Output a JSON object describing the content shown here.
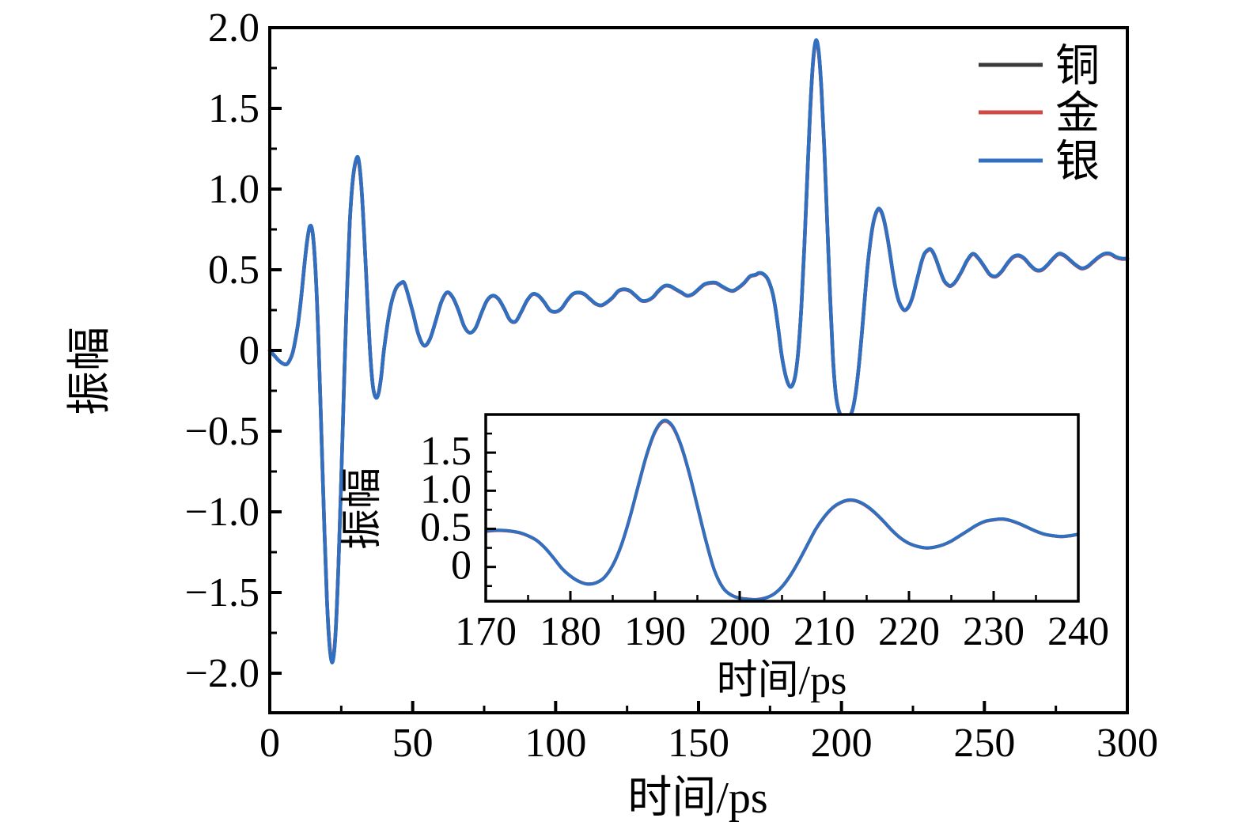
{
  "figure": {
    "background": "#ffffff",
    "axis_color": "#000000"
  },
  "chart_data": {
    "type": "line",
    "title": "",
    "series": [
      {
        "name": "铜",
        "color": "#3a3a3c",
        "amplitude_scale": 0.997
      },
      {
        "name": "金",
        "color": "#cf4a45",
        "amplitude_scale": 0.994
      },
      {
        "name": "银",
        "color": "#3170c0",
        "amplitude_scale": 1.0
      }
    ],
    "points": [
      [
        0,
        0
      ],
      [
        1,
        -0.02
      ],
      [
        2,
        -0.04
      ],
      [
        3,
        -0.06
      ],
      [
        4,
        -0.075
      ],
      [
        5,
        -0.085
      ],
      [
        6,
        -0.085
      ],
      [
        7,
        -0.06
      ],
      [
        8,
        -0.015
      ],
      [
        9,
        0.07
      ],
      [
        10,
        0.18
      ],
      [
        11,
        0.33
      ],
      [
        12,
        0.51
      ],
      [
        13,
        0.67
      ],
      [
        14,
        0.77
      ],
      [
        15,
        0.73
      ],
      [
        16,
        0.5
      ],
      [
        17,
        0.08
      ],
      [
        18,
        -0.48
      ],
      [
        19,
        -1.05
      ],
      [
        20,
        -1.55
      ],
      [
        21,
        -1.85
      ],
      [
        22,
        -1.93
      ],
      [
        23,
        -1.76
      ],
      [
        24,
        -1.35
      ],
      [
        25,
        -0.8
      ],
      [
        26,
        -0.2
      ],
      [
        27,
        0.36
      ],
      [
        28,
        0.8
      ],
      [
        29,
        1.05
      ],
      [
        30,
        1.17
      ],
      [
        31,
        1.19
      ],
      [
        32,
        1.03
      ],
      [
        33,
        0.73
      ],
      [
        34,
        0.37
      ],
      [
        35,
        0.02
      ],
      [
        36,
        -0.21
      ],
      [
        37,
        -0.29
      ],
      [
        38,
        -0.27
      ],
      [
        39,
        -0.16
      ],
      [
        40,
        0.01
      ],
      [
        42,
        0.25
      ],
      [
        44,
        0.38
      ],
      [
        46,
        0.42
      ],
      [
        47,
        0.42
      ],
      [
        48,
        0.37
      ],
      [
        50,
        0.24
      ],
      [
        52,
        0.1
      ],
      [
        54,
        0.03
      ],
      [
        56,
        0.07
      ],
      [
        58,
        0.18
      ],
      [
        60,
        0.3
      ],
      [
        62,
        0.36
      ],
      [
        64,
        0.33
      ],
      [
        66,
        0.25
      ],
      [
        68,
        0.15
      ],
      [
        70,
        0.11
      ],
      [
        72,
        0.14
      ],
      [
        74,
        0.23
      ],
      [
        76,
        0.31
      ],
      [
        78,
        0.34
      ],
      [
        80,
        0.32
      ],
      [
        82,
        0.26
      ],
      [
        84,
        0.19
      ],
      [
        86,
        0.18
      ],
      [
        88,
        0.24
      ],
      [
        90,
        0.31
      ],
      [
        92,
        0.35
      ],
      [
        94,
        0.34
      ],
      [
        96,
        0.3
      ],
      [
        98,
        0.25
      ],
      [
        100,
        0.24
      ],
      [
        102,
        0.26
      ],
      [
        104,
        0.31
      ],
      [
        106,
        0.35
      ],
      [
        108,
        0.36
      ],
      [
        110,
        0.35
      ],
      [
        112,
        0.32
      ],
      [
        114,
        0.29
      ],
      [
        116,
        0.28
      ],
      [
        118,
        0.3
      ],
      [
        120,
        0.33
      ],
      [
        122,
        0.37
      ],
      [
        124,
        0.38
      ],
      [
        126,
        0.37
      ],
      [
        128,
        0.34
      ],
      [
        130,
        0.31
      ],
      [
        132,
        0.31
      ],
      [
        134,
        0.33
      ],
      [
        136,
        0.37
      ],
      [
        138,
        0.4
      ],
      [
        140,
        0.4
      ],
      [
        142,
        0.38
      ],
      [
        144,
        0.36
      ],
      [
        146,
        0.34
      ],
      [
        148,
        0.35
      ],
      [
        150,
        0.38
      ],
      [
        152,
        0.41
      ],
      [
        154,
        0.42
      ],
      [
        156,
        0.42
      ],
      [
        158,
        0.4
      ],
      [
        160,
        0.38
      ],
      [
        162,
        0.37
      ],
      [
        164,
        0.39
      ],
      [
        166,
        0.42
      ],
      [
        168,
        0.46
      ],
      [
        170,
        0.47
      ],
      [
        171,
        0.48
      ],
      [
        172,
        0.48
      ],
      [
        173,
        0.47
      ],
      [
        174,
        0.45
      ],
      [
        175,
        0.41
      ],
      [
        176,
        0.35
      ],
      [
        177,
        0.25
      ],
      [
        178,
        0.12
      ],
      [
        179,
        -0.02
      ],
      [
        180,
        -0.12
      ],
      [
        181,
        -0.19
      ],
      [
        182,
        -0.225
      ],
      [
        183,
        -0.21
      ],
      [
        184,
        -0.14
      ],
      [
        185,
        0.02
      ],
      [
        186,
        0.28
      ],
      [
        187,
        0.64
      ],
      [
        188,
        1.06
      ],
      [
        189,
        1.47
      ],
      [
        190,
        1.78
      ],
      [
        191,
        1.92
      ],
      [
        192,
        1.86
      ],
      [
        193,
        1.62
      ],
      [
        194,
        1.25
      ],
      [
        195,
        0.8
      ],
      [
        196,
        0.35
      ],
      [
        197,
        -0.04
      ],
      [
        198,
        -0.27
      ],
      [
        199,
        -0.37
      ],
      [
        200,
        -0.41
      ],
      [
        201,
        -0.425
      ],
      [
        202,
        -0.43
      ],
      [
        203,
        -0.41
      ],
      [
        204,
        -0.36
      ],
      [
        205,
        -0.26
      ],
      [
        206,
        -0.11
      ],
      [
        207,
        0.08
      ],
      [
        208,
        0.29
      ],
      [
        209,
        0.5
      ],
      [
        210,
        0.66
      ],
      [
        211,
        0.78
      ],
      [
        212,
        0.85
      ],
      [
        213,
        0.88
      ],
      [
        214,
        0.86
      ],
      [
        215,
        0.8
      ],
      [
        216,
        0.71
      ],
      [
        217,
        0.6
      ],
      [
        218,
        0.48
      ],
      [
        219,
        0.38
      ],
      [
        220,
        0.31
      ],
      [
        221,
        0.27
      ],
      [
        222,
        0.25
      ],
      [
        223,
        0.26
      ],
      [
        224,
        0.29
      ],
      [
        225,
        0.34
      ],
      [
        226,
        0.41
      ],
      [
        227,
        0.48
      ],
      [
        228,
        0.55
      ],
      [
        229,
        0.6
      ],
      [
        230,
        0.62
      ],
      [
        231,
        0.63
      ],
      [
        232,
        0.61
      ],
      [
        233,
        0.57
      ],
      [
        234,
        0.52
      ],
      [
        235,
        0.47
      ],
      [
        236,
        0.43
      ],
      [
        237,
        0.41
      ],
      [
        238,
        0.4
      ],
      [
        239,
        0.41
      ],
      [
        240,
        0.43
      ],
      [
        242,
        0.49
      ],
      [
        244,
        0.56
      ],
      [
        246,
        0.6
      ],
      [
        248,
        0.57
      ],
      [
        250,
        0.52
      ],
      [
        252,
        0.47
      ],
      [
        254,
        0.46
      ],
      [
        256,
        0.49
      ],
      [
        258,
        0.54
      ],
      [
        260,
        0.58
      ],
      [
        262,
        0.59
      ],
      [
        264,
        0.57
      ],
      [
        266,
        0.53
      ],
      [
        268,
        0.5
      ],
      [
        270,
        0.5
      ],
      [
        272,
        0.53
      ],
      [
        274,
        0.57
      ],
      [
        276,
        0.6
      ],
      [
        278,
        0.59
      ],
      [
        280,
        0.56
      ],
      [
        282,
        0.53
      ],
      [
        284,
        0.51
      ],
      [
        286,
        0.52
      ],
      [
        288,
        0.55
      ],
      [
        290,
        0.58
      ],
      [
        292,
        0.6
      ],
      [
        294,
        0.6
      ],
      [
        296,
        0.58
      ],
      [
        298,
        0.57
      ],
      [
        300,
        0.57
      ]
    ],
    "main_axes": {
      "xlabel": "时间/ps",
      "ylabel": "振幅",
      "xlim": [
        0,
        300
      ],
      "ylim": [
        -2.245,
        2.0
      ],
      "x_major_ticks": [
        0,
        50,
        100,
        150,
        200,
        250,
        300
      ],
      "x_major_labels": [
        "0",
        "50",
        "100",
        "150",
        "200",
        "250",
        "300"
      ],
      "x_minor_ticks": [
        25,
        75,
        125,
        175,
        225,
        275
      ],
      "y_major_ticks": [
        -2.0,
        -1.5,
        -1.0,
        -0.5,
        0,
        0.5,
        1.0,
        1.5,
        2.0
      ],
      "y_major_labels": [
        "−2.0",
        "−1.5",
        "−1.0",
        "−0.5",
        "0",
        "0.5",
        "1.0",
        "1.5",
        "2.0"
      ],
      "y_minor_ticks": [
        -1.75,
        -1.25,
        -0.75,
        -0.25,
        0.25,
        0.75,
        1.25,
        1.75
      ],
      "grid": false,
      "legend_position": "upper right"
    },
    "inset_axes": {
      "xlabel": "时间/ps",
      "ylabel": "振幅",
      "xlim": [
        170,
        240
      ],
      "ylim": [
        -0.45,
        2.0
      ],
      "x_major_ticks": [
        170,
        180,
        190,
        200,
        210,
        220,
        230,
        240
      ],
      "x_major_labels": [
        "170",
        "180",
        "190",
        "200",
        "210",
        "220",
        "230",
        "240"
      ],
      "x_minor_ticks": [
        175,
        185,
        195,
        205,
        215,
        225,
        235
      ],
      "y_major_ticks": [
        0,
        0.5,
        1.0,
        1.5
      ],
      "y_major_labels": [
        "0",
        "0.5",
        "1.0",
        "1.5"
      ],
      "y_minor_ticks": [
        -0.25,
        0.25,
        0.75,
        1.25,
        1.75
      ],
      "grid": false,
      "data_t_range": [
        170,
        240
      ]
    }
  }
}
